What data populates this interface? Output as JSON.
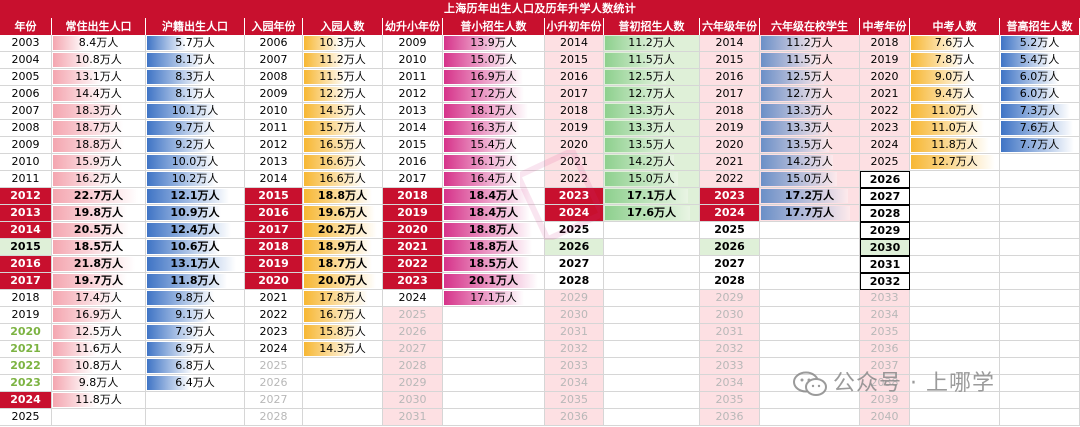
{
  "title": "上海历年出生人口及历年升学人数统计",
  "headers": [
    "年份",
    "常住出生人口",
    "沪籍出生人口",
    "入园年份",
    "入园人数",
    "幼升小年份",
    "普小招生人数",
    "小升初年份",
    "普初招生人数",
    "六年级年份",
    "六年级在校学生",
    "中考年份",
    "中考人数",
    "普高招生人数"
  ],
  "columns": {
    "birth_year": [
      "2003",
      "2004",
      "2005",
      "2006",
      "2007",
      "2008",
      "2009",
      "2010",
      "2011",
      "2012",
      "2013",
      "2014",
      "2015",
      "2016",
      "2017",
      "2018",
      "2019",
      "2020",
      "2021",
      "2022",
      "2023",
      "2024",
      "2025"
    ],
    "resident_births": [
      "8.4万人",
      "10.8万人",
      "13.1万人",
      "14.4万人",
      "18.3万人",
      "18.7万人",
      "18.8万人",
      "15.9万人",
      "16.2万人",
      "22.7万人",
      "19.8万人",
      "20.5万人",
      "18.5万人",
      "21.8万人",
      "19.7万人",
      "17.4万人",
      "16.9万人",
      "12.5万人",
      "11.6万人",
      "10.8万人",
      "9.8万人",
      "11.8万人",
      ""
    ],
    "resident_births_value": [
      8.4,
      10.8,
      13.1,
      14.4,
      18.3,
      18.7,
      18.8,
      15.9,
      16.2,
      22.7,
      19.8,
      20.5,
      18.5,
      21.8,
      19.7,
      17.4,
      16.9,
      12.5,
      11.6,
      10.8,
      9.8,
      11.8,
      null
    ],
    "hukou_births": [
      "5.7万人",
      "8.1万人",
      "8.3万人",
      "8.1万人",
      "10.1万人",
      "9.7万人",
      "9.2万人",
      "10.0万人",
      "10.2万人",
      "12.1万人",
      "10.9万人",
      "12.4万人",
      "10.6万人",
      "13.1万人",
      "11.8万人",
      "9.8万人",
      "9.1万人",
      "7.9万人",
      "6.9万人",
      "6.8万人",
      "6.4万人",
      "",
      ""
    ],
    "hukou_births_value": [
      5.7,
      8.1,
      8.3,
      8.1,
      10.1,
      9.7,
      9.2,
      10.0,
      10.2,
      12.1,
      10.9,
      12.4,
      10.6,
      13.1,
      11.8,
      9.8,
      9.1,
      7.9,
      6.9,
      6.8,
      6.4,
      null,
      null
    ],
    "kinder_year": [
      "2006",
      "2007",
      "2008",
      "2009",
      "2010",
      "2011",
      "2012",
      "2013",
      "2014",
      "2015",
      "2016",
      "2017",
      "2018",
      "2019",
      "2020",
      "2021",
      "2022",
      "2023",
      "2024",
      "2025",
      "2026",
      "2027",
      "2028"
    ],
    "kinder_enroll": [
      "10.3万人",
      "11.2万人",
      "11.5万人",
      "12.2万人",
      "14.5万人",
      "15.7万人",
      "16.5万人",
      "16.6万人",
      "16.6万人",
      "18.8万人",
      "19.6万人",
      "20.2万人",
      "18.9万人",
      "18.7万人",
      "20.0万人",
      "17.8万人",
      "16.7万人",
      "15.8万人",
      "14.3万人",
      "",
      "",
      "",
      ""
    ],
    "kinder_enroll_value": [
      10.3,
      11.2,
      11.5,
      12.2,
      14.5,
      15.7,
      16.5,
      16.6,
      16.6,
      18.8,
      19.6,
      20.2,
      18.9,
      18.7,
      20.0,
      17.8,
      16.7,
      15.8,
      14.3,
      null,
      null,
      null,
      null
    ],
    "primary_year": [
      "2009",
      "2010",
      "2011",
      "2012",
      "2013",
      "2014",
      "2015",
      "2016",
      "2017",
      "2018",
      "2019",
      "2020",
      "2021",
      "2022",
      "2023",
      "2024",
      "2025",
      "2026",
      "2027",
      "2028",
      "2029",
      "2030",
      "2031"
    ],
    "primary_enroll": [
      "13.9万人",
      "15.0万人",
      "16.9万人",
      "17.2万人",
      "18.1万人",
      "16.3万人",
      "15.4万人",
      "16.1万人",
      "16.4万人",
      "18.4万人",
      "18.4万人",
      "18.8万人",
      "18.8万人",
      "18.5万人",
      "20.1万人",
      "17.1万人",
      "",
      "",
      "",
      "",
      "",
      "",
      ""
    ],
    "primary_enroll_value": [
      13.9,
      15.0,
      16.9,
      17.2,
      18.1,
      16.3,
      15.4,
      16.1,
      16.4,
      18.4,
      18.4,
      18.8,
      18.8,
      18.5,
      20.1,
      17.1,
      null,
      null,
      null,
      null,
      null,
      null,
      null
    ],
    "junior_year": [
      "2014",
      "2015",
      "2016",
      "2017",
      "2018",
      "2019",
      "2020",
      "2021",
      "2022",
      "2023",
      "2024",
      "2025",
      "2026",
      "2027",
      "2028",
      "2029",
      "2030",
      "2031",
      "2032",
      "2033",
      "2034",
      "2035",
      "2036"
    ],
    "junior_enroll": [
      "11.2万人",
      "11.5万人",
      "12.5万人",
      "12.7万人",
      "13.3万人",
      "13.3万人",
      "13.5万人",
      "14.2万人",
      "15.0万人",
      "17.1万人",
      "17.6万人",
      "",
      "",
      "",
      "",
      "",
      "",
      "",
      "",
      "",
      "",
      "",
      ""
    ],
    "junior_enroll_value": [
      11.2,
      11.5,
      12.5,
      12.7,
      13.3,
      13.3,
      13.5,
      14.2,
      15.0,
      17.1,
      17.6,
      null,
      null,
      null,
      null,
      null,
      null,
      null,
      null,
      null,
      null,
      null,
      null
    ],
    "grade6_year": [
      "2014",
      "2015",
      "2016",
      "2017",
      "2018",
      "2019",
      "2020",
      "2021",
      "2022",
      "2023",
      "2024",
      "2025",
      "2026",
      "2027",
      "2028",
      "2029",
      "2030",
      "2031",
      "2032",
      "2033",
      "2034",
      "2035",
      "2036"
    ],
    "grade6_students": [
      "11.2万人",
      "11.5万人",
      "12.5万人",
      "12.7万人",
      "13.3万人",
      "13.3万人",
      "13.5万人",
      "14.2万人",
      "15.0万人",
      "17.2万人",
      "17.7万人",
      "",
      "",
      "",
      "",
      "",
      "",
      "",
      "",
      "",
      "",
      "",
      ""
    ],
    "grade6_students_value": [
      11.2,
      11.5,
      12.5,
      12.7,
      13.3,
      13.3,
      13.5,
      14.2,
      15.0,
      17.2,
      17.7,
      null,
      null,
      null,
      null,
      null,
      null,
      null,
      null,
      null,
      null,
      null,
      null
    ],
    "zhongkao_year": [
      "2018",
      "2019",
      "2020",
      "2021",
      "2022",
      "2023",
      "2024",
      "2025",
      "2026",
      "2027",
      "2028",
      "2029",
      "2030",
      "2031",
      "2032",
      "2033",
      "2034",
      "2035",
      "2036",
      "2037",
      "2038",
      "2039",
      "2040"
    ],
    "zhongkao_count": [
      "7.6万人",
      "7.8万人",
      "9.0万人",
      "9.4万人",
      "11.0万人",
      "11.0万人",
      "11.8万人",
      "12.7万人",
      "",
      "",
      "",
      "",
      "",
      "",
      "",
      "",
      "",
      "",
      "",
      "",
      "",
      "",
      ""
    ],
    "zhongkao_count_value": [
      7.6,
      7.8,
      9.0,
      9.4,
      11.0,
      11.0,
      11.8,
      12.7,
      null,
      null,
      null,
      null,
      null,
      null,
      null,
      null,
      null,
      null,
      null,
      null,
      null,
      null,
      null
    ],
    "highschool_enroll": [
      "5.2万人",
      "5.4万人",
      "6.0万人",
      "6.0万人",
      "7.3万人",
      "7.6万人",
      "7.7万人",
      "",
      "",
      "",
      "",
      "",
      "",
      "",
      "",
      "",
      "",
      "",
      "",
      "",
      "",
      "",
      ""
    ],
    "highschool_enroll_value": [
      5.2,
      5.4,
      6.0,
      6.0,
      7.3,
      7.6,
      7.7,
      null,
      null,
      null,
      null,
      null,
      null,
      null,
      null,
      null,
      null,
      null,
      null,
      null,
      null,
      null,
      null
    ]
  },
  "colors": {
    "header_red": "#c8102e",
    "bar_pink": "#f4a6b0",
    "bar_blue": "#3f74c5",
    "bar_orange": "#f7b733",
    "bar_magenta": "#d6338a",
    "bar_green": "#8ed08e",
    "bar_grey_blue": "#6b8fc7",
    "light_pink": "#fde0e3",
    "light_green": "#dff0d8",
    "green_text": "#7cb342"
  },
  "watermark": {
    "icon": "wechat-icon",
    "text": "公众号 · 上哪学"
  }
}
